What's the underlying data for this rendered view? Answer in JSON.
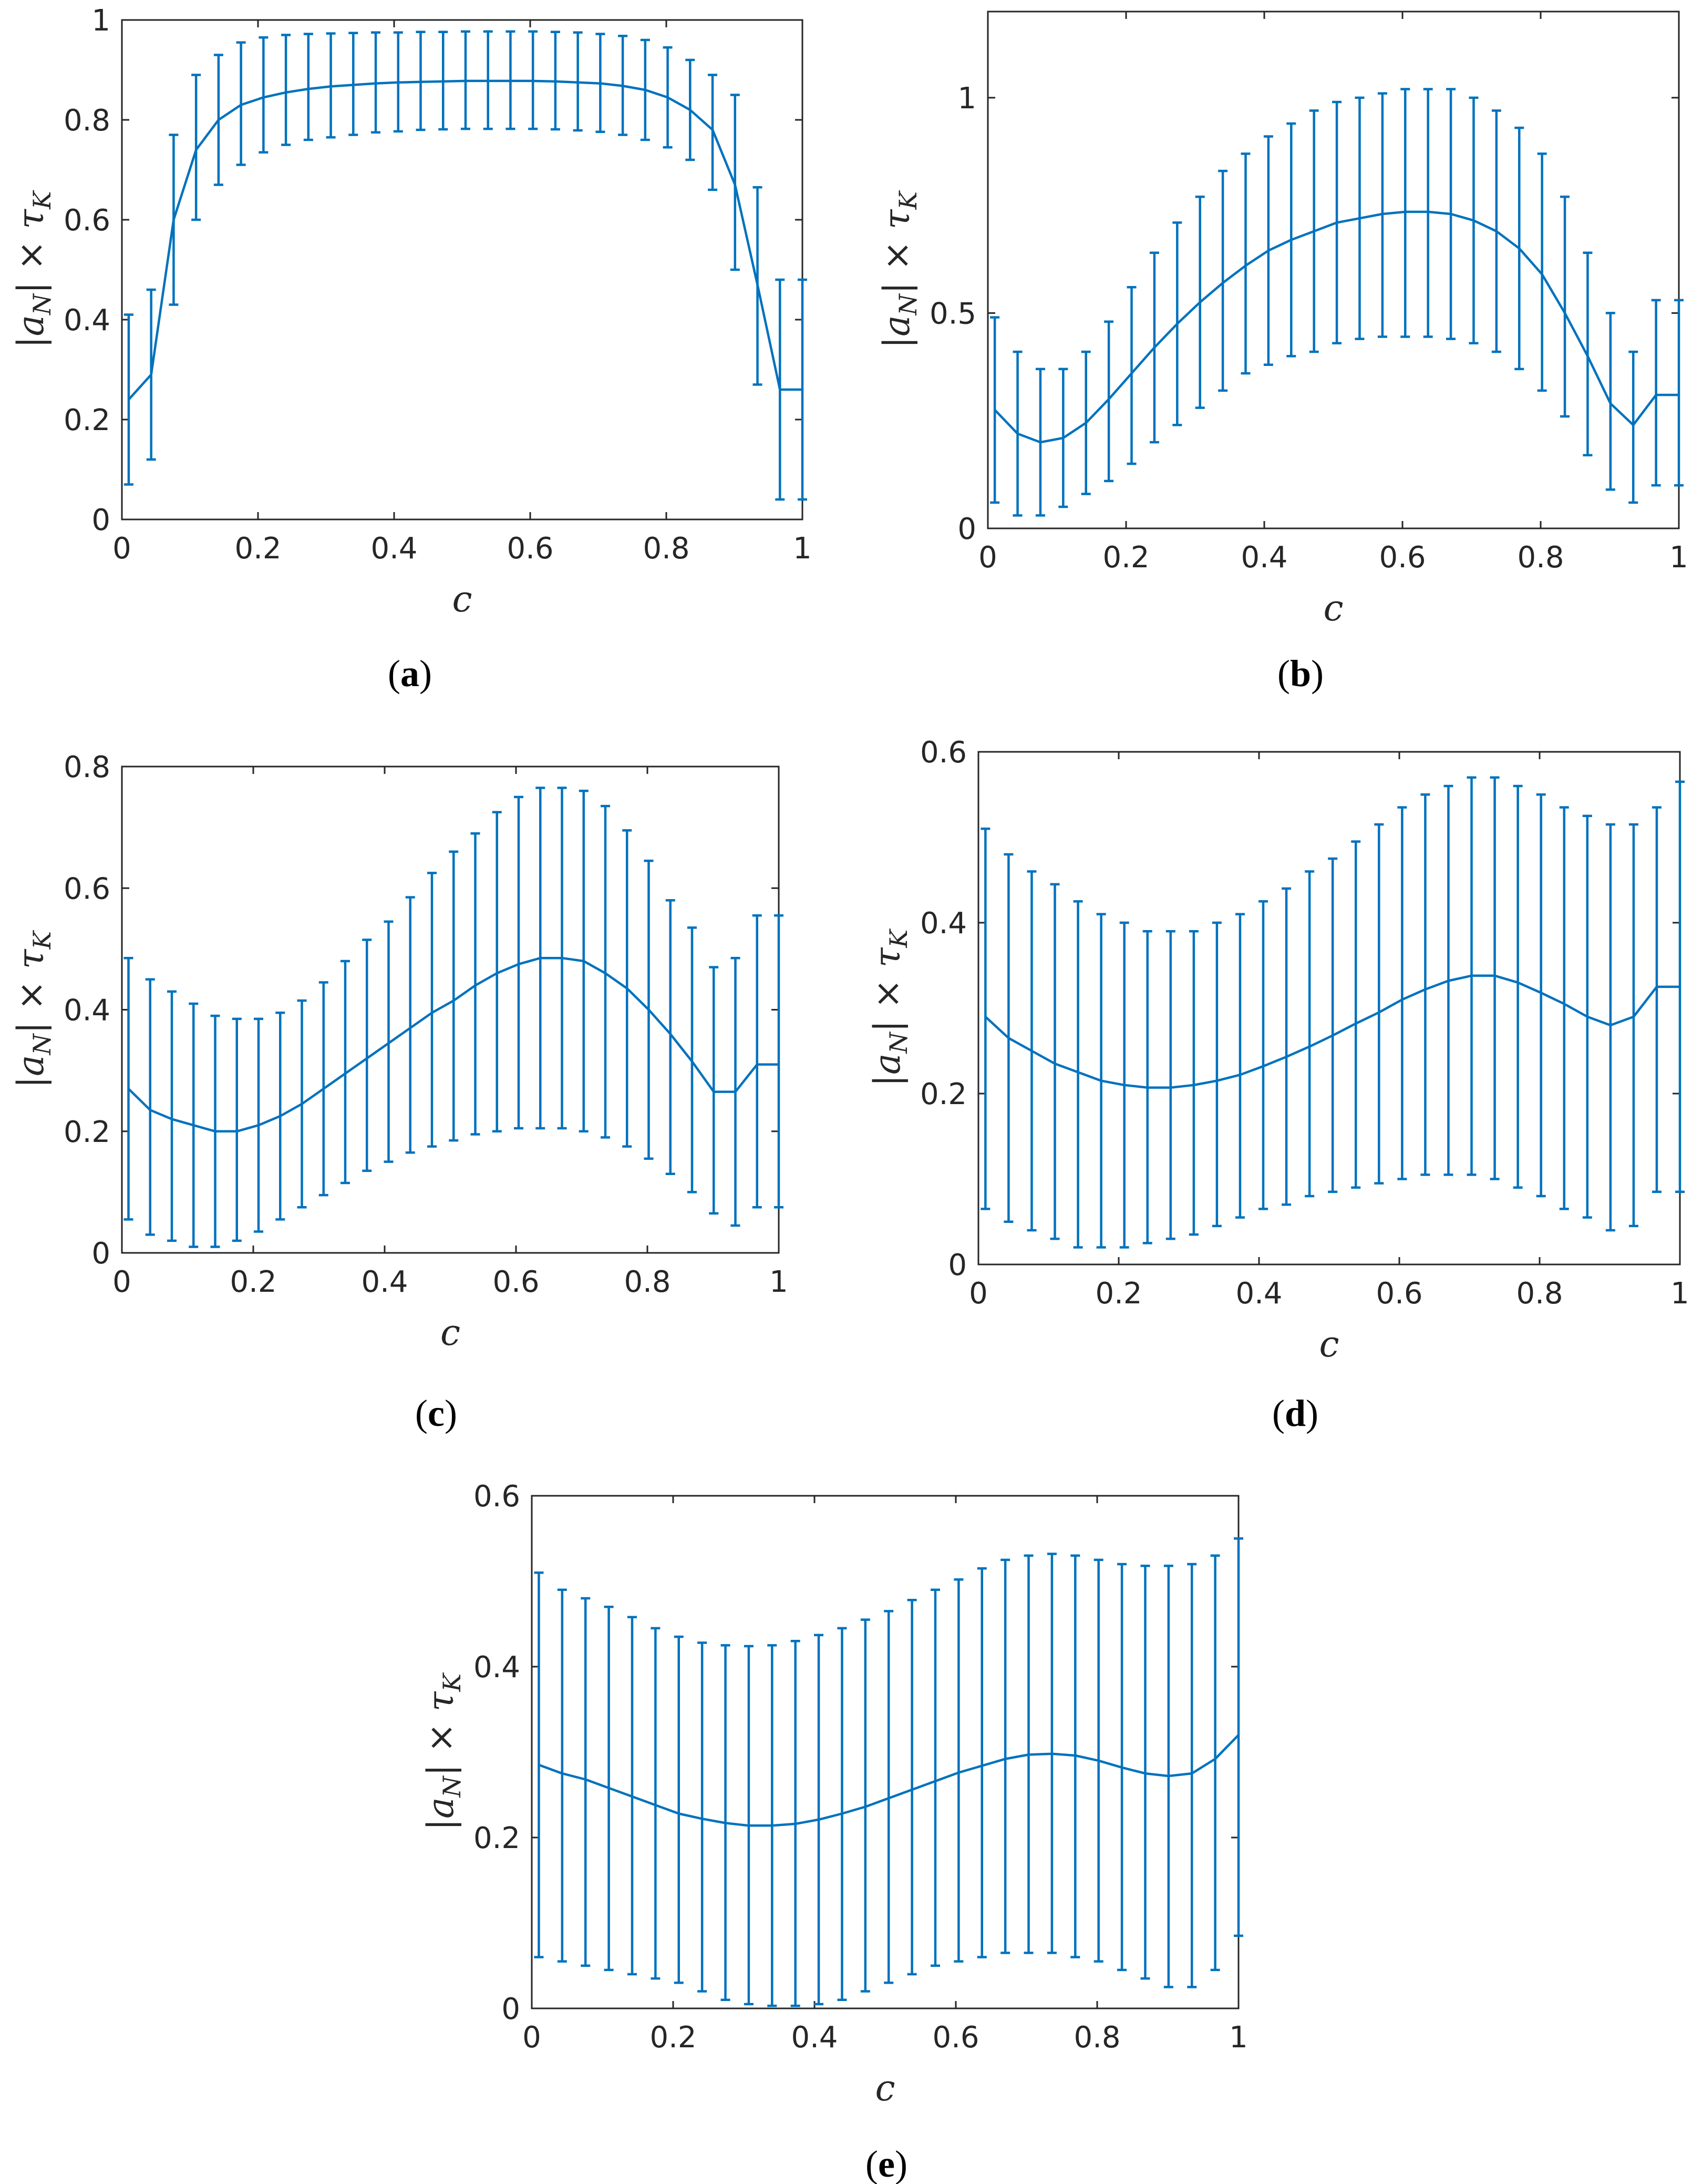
{
  "figure": {
    "colors": {
      "series": "#0072BD",
      "axis": "#262626",
      "background": "#ffffff"
    }
  },
  "chart_data": [
    {
      "type": "line",
      "panel_label": "a",
      "caption": "(a)",
      "xlabel": "c",
      "ylabel": {
        "pre": "|a",
        "sub": "N",
        "mid": "| × τ",
        "sub2": "K"
      },
      "xlim": [
        0,
        1
      ],
      "ylim": [
        0,
        1
      ],
      "xticks": [
        "0",
        "0.2",
        "0.4",
        "0.6",
        "0.8",
        "1"
      ],
      "yticks": [
        "0",
        "0.2",
        "0.4",
        "0.6",
        "0.8",
        "1"
      ],
      "xtick_values": [
        0,
        0.2,
        0.4,
        0.6,
        0.8,
        1
      ],
      "ytick_values": [
        0,
        0.2,
        0.4,
        0.6,
        0.8,
        1
      ],
      "error_bars": true,
      "grid": false,
      "x": [
        0.01,
        0.043,
        0.076,
        0.109,
        0.142,
        0.175,
        0.208,
        0.241,
        0.274,
        0.307,
        0.34,
        0.373,
        0.406,
        0.439,
        0.472,
        0.505,
        0.538,
        0.571,
        0.604,
        0.637,
        0.67,
        0.703,
        0.736,
        0.769,
        0.802,
        0.835,
        0.868,
        0.901,
        0.934,
        0.967,
        1.0
      ],
      "y": [
        0.24,
        0.29,
        0.6,
        0.74,
        0.8,
        0.83,
        0.845,
        0.855,
        0.862,
        0.867,
        0.87,
        0.873,
        0.875,
        0.876,
        0.877,
        0.878,
        0.878,
        0.878,
        0.878,
        0.877,
        0.875,
        0.873,
        0.868,
        0.86,
        0.845,
        0.82,
        0.78,
        0.67,
        0.47,
        0.26,
        0.26
      ],
      "lower": [
        0.07,
        0.12,
        0.43,
        0.6,
        0.67,
        0.71,
        0.735,
        0.75,
        0.76,
        0.765,
        0.77,
        0.775,
        0.777,
        0.78,
        0.781,
        0.782,
        0.782,
        0.782,
        0.782,
        0.781,
        0.779,
        0.776,
        0.77,
        0.76,
        0.745,
        0.72,
        0.66,
        0.5,
        0.27,
        0.04,
        0.04
      ],
      "upper": [
        0.41,
        0.46,
        0.77,
        0.89,
        0.93,
        0.955,
        0.965,
        0.97,
        0.972,
        0.973,
        0.974,
        0.975,
        0.975,
        0.976,
        0.976,
        0.977,
        0.977,
        0.977,
        0.977,
        0.976,
        0.975,
        0.972,
        0.968,
        0.96,
        0.945,
        0.92,
        0.89,
        0.85,
        0.665,
        0.48,
        0.48
      ]
    },
    {
      "type": "line",
      "panel_label": "b",
      "caption": "(b)",
      "xlabel": "c",
      "ylabel": {
        "pre": "|a",
        "sub": "N",
        "mid": "| × τ",
        "sub2": "K"
      },
      "xlim": [
        0,
        1
      ],
      "ylim": [
        0,
        1.2
      ],
      "xticks": [
        "0",
        "0.2",
        "0.4",
        "0.6",
        "0.8",
        "1"
      ],
      "yticks": [
        "0",
        "0.5",
        "1"
      ],
      "xtick_values": [
        0,
        0.2,
        0.4,
        0.6,
        0.8,
        1
      ],
      "ytick_values": [
        0,
        0.5,
        1
      ],
      "error_bars": true,
      "grid": false,
      "x": [
        0.01,
        0.043,
        0.076,
        0.109,
        0.142,
        0.175,
        0.208,
        0.241,
        0.274,
        0.307,
        0.34,
        0.373,
        0.406,
        0.439,
        0.472,
        0.505,
        0.538,
        0.571,
        0.604,
        0.637,
        0.67,
        0.703,
        0.736,
        0.769,
        0.802,
        0.835,
        0.868,
        0.901,
        0.934,
        0.967,
        1.0
      ],
      "y": [
        0.275,
        0.22,
        0.2,
        0.21,
        0.245,
        0.3,
        0.36,
        0.42,
        0.475,
        0.525,
        0.57,
        0.61,
        0.645,
        0.67,
        0.69,
        0.71,
        0.72,
        0.73,
        0.735,
        0.735,
        0.73,
        0.715,
        0.69,
        0.65,
        0.59,
        0.5,
        0.4,
        0.29,
        0.24,
        0.31,
        0.31
      ],
      "lower": [
        0.06,
        0.03,
        0.03,
        0.05,
        0.08,
        0.11,
        0.15,
        0.2,
        0.24,
        0.28,
        0.32,
        0.36,
        0.38,
        0.4,
        0.41,
        0.43,
        0.44,
        0.445,
        0.445,
        0.445,
        0.44,
        0.43,
        0.41,
        0.37,
        0.32,
        0.26,
        0.17,
        0.09,
        0.06,
        0.1,
        0.1
      ],
      "upper": [
        0.49,
        0.41,
        0.37,
        0.37,
        0.41,
        0.48,
        0.56,
        0.64,
        0.71,
        0.77,
        0.83,
        0.87,
        0.91,
        0.94,
        0.97,
        0.99,
        1.0,
        1.01,
        1.02,
        1.02,
        1.02,
        1.0,
        0.97,
        0.93,
        0.87,
        0.77,
        0.64,
        0.5,
        0.41,
        0.53,
        0.53
      ]
    },
    {
      "type": "line",
      "panel_label": "c",
      "caption": "(c)",
      "xlabel": "c",
      "ylabel": {
        "pre": "|a",
        "sub": "N",
        "mid": "| × τ",
        "sub2": "K"
      },
      "xlim": [
        0,
        1
      ],
      "ylim": [
        0,
        0.8
      ],
      "xticks": [
        "0",
        "0.2",
        "0.4",
        "0.6",
        "0.8",
        "1"
      ],
      "yticks": [
        "0",
        "0.2",
        "0.4",
        "0.6",
        "0.8"
      ],
      "xtick_values": [
        0,
        0.2,
        0.4,
        0.6,
        0.8,
        1
      ],
      "ytick_values": [
        0,
        0.2,
        0.4,
        0.6,
        0.8
      ],
      "error_bars": true,
      "grid": false,
      "x": [
        0.01,
        0.043,
        0.076,
        0.109,
        0.142,
        0.175,
        0.208,
        0.241,
        0.274,
        0.307,
        0.34,
        0.373,
        0.406,
        0.439,
        0.472,
        0.505,
        0.538,
        0.571,
        0.604,
        0.637,
        0.67,
        0.703,
        0.736,
        0.769,
        0.802,
        0.835,
        0.868,
        0.901,
        0.934,
        0.967,
        1.0
      ],
      "y": [
        0.27,
        0.235,
        0.22,
        0.21,
        0.2,
        0.2,
        0.21,
        0.225,
        0.245,
        0.27,
        0.295,
        0.32,
        0.345,
        0.37,
        0.395,
        0.415,
        0.44,
        0.46,
        0.475,
        0.485,
        0.485,
        0.48,
        0.46,
        0.435,
        0.4,
        0.36,
        0.315,
        0.265,
        0.265,
        0.31,
        0.31
      ],
      "lower": [
        0.055,
        0.03,
        0.02,
        0.01,
        0.01,
        0.02,
        0.035,
        0.055,
        0.075,
        0.095,
        0.115,
        0.135,
        0.15,
        0.165,
        0.175,
        0.185,
        0.195,
        0.2,
        0.205,
        0.205,
        0.205,
        0.2,
        0.19,
        0.175,
        0.155,
        0.13,
        0.1,
        0.065,
        0.045,
        0.075,
        0.075
      ],
      "upper": [
        0.485,
        0.45,
        0.43,
        0.41,
        0.39,
        0.385,
        0.385,
        0.395,
        0.415,
        0.445,
        0.48,
        0.515,
        0.545,
        0.585,
        0.625,
        0.66,
        0.69,
        0.725,
        0.75,
        0.765,
        0.765,
        0.76,
        0.735,
        0.695,
        0.645,
        0.58,
        0.535,
        0.47,
        0.485,
        0.555,
        0.555
      ]
    },
    {
      "type": "line",
      "panel_label": "d",
      "caption": "(d)",
      "xlabel": "c",
      "ylabel": {
        "pre": "|a",
        "sub": "N",
        "mid": "| × τ",
        "sub2": "K"
      },
      "xlim": [
        0,
        1
      ],
      "ylim": [
        0,
        0.6
      ],
      "xticks": [
        "0",
        "0.2",
        "0.4",
        "0.6",
        "0.8",
        "1"
      ],
      "yticks": [
        "0",
        "0.2",
        "0.4",
        "0.6"
      ],
      "xtick_values": [
        0,
        0.2,
        0.4,
        0.6,
        0.8,
        1
      ],
      "ytick_values": [
        0,
        0.2,
        0.4,
        0.6
      ],
      "error_bars": true,
      "grid": false,
      "x": [
        0.01,
        0.043,
        0.076,
        0.109,
        0.142,
        0.175,
        0.208,
        0.241,
        0.274,
        0.307,
        0.34,
        0.373,
        0.406,
        0.439,
        0.472,
        0.505,
        0.538,
        0.571,
        0.604,
        0.637,
        0.67,
        0.703,
        0.736,
        0.769,
        0.802,
        0.835,
        0.868,
        0.901,
        0.934,
        0.967,
        1.0
      ],
      "y": [
        0.29,
        0.265,
        0.25,
        0.235,
        0.225,
        0.215,
        0.21,
        0.207,
        0.207,
        0.21,
        0.215,
        0.222,
        0.232,
        0.243,
        0.255,
        0.268,
        0.282,
        0.295,
        0.31,
        0.322,
        0.332,
        0.338,
        0.338,
        0.33,
        0.318,
        0.305,
        0.29,
        0.28,
        0.29,
        0.325,
        0.325
      ],
      "lower": [
        0.065,
        0.05,
        0.04,
        0.03,
        0.02,
        0.02,
        0.02,
        0.025,
        0.03,
        0.035,
        0.045,
        0.055,
        0.065,
        0.07,
        0.08,
        0.085,
        0.09,
        0.095,
        0.1,
        0.105,
        0.105,
        0.105,
        0.1,
        0.09,
        0.08,
        0.065,
        0.055,
        0.04,
        0.045,
        0.085,
        0.085
      ],
      "upper": [
        0.51,
        0.48,
        0.46,
        0.445,
        0.425,
        0.41,
        0.4,
        0.39,
        0.39,
        0.39,
        0.4,
        0.41,
        0.425,
        0.44,
        0.46,
        0.475,
        0.495,
        0.515,
        0.535,
        0.55,
        0.56,
        0.57,
        0.57,
        0.56,
        0.55,
        0.535,
        0.525,
        0.515,
        0.515,
        0.535,
        0.565
      ]
    },
    {
      "type": "line",
      "panel_label": "e",
      "caption": "(e)",
      "xlabel": "c",
      "ylabel": {
        "pre": "|a",
        "sub": "N",
        "mid": "| × τ",
        "sub2": "K"
      },
      "xlim": [
        0,
        1
      ],
      "ylim": [
        0,
        0.6
      ],
      "xticks": [
        "0",
        "0.2",
        "0.4",
        "0.6",
        "0.8",
        "1"
      ],
      "yticks": [
        "0",
        "0.2",
        "0.4",
        "0.6"
      ],
      "xtick_values": [
        0,
        0.2,
        0.4,
        0.6,
        0.8,
        1
      ],
      "ytick_values": [
        0,
        0.2,
        0.4,
        0.6
      ],
      "error_bars": true,
      "grid": false,
      "x": [
        0.01,
        0.043,
        0.076,
        0.109,
        0.142,
        0.175,
        0.208,
        0.241,
        0.274,
        0.307,
        0.34,
        0.373,
        0.406,
        0.439,
        0.472,
        0.505,
        0.538,
        0.571,
        0.604,
        0.637,
        0.67,
        0.703,
        0.736,
        0.769,
        0.802,
        0.835,
        0.868,
        0.901,
        0.934,
        0.967,
        1.0
      ],
      "y": [
        0.285,
        0.275,
        0.268,
        0.258,
        0.248,
        0.238,
        0.228,
        0.222,
        0.217,
        0.214,
        0.214,
        0.216,
        0.221,
        0.228,
        0.236,
        0.246,
        0.256,
        0.266,
        0.276,
        0.284,
        0.292,
        0.297,
        0.298,
        0.296,
        0.29,
        0.282,
        0.275,
        0.272,
        0.275,
        0.292,
        0.32
      ],
      "lower": [
        0.06,
        0.055,
        0.05,
        0.045,
        0.04,
        0.035,
        0.03,
        0.02,
        0.01,
        0.005,
        0.003,
        0.003,
        0.005,
        0.01,
        0.02,
        0.03,
        0.04,
        0.05,
        0.055,
        0.06,
        0.065,
        0.065,
        0.065,
        0.06,
        0.055,
        0.045,
        0.035,
        0.025,
        0.025,
        0.045,
        0.085
      ],
      "upper": [
        0.51,
        0.49,
        0.48,
        0.47,
        0.458,
        0.445,
        0.435,
        0.428,
        0.425,
        0.424,
        0.425,
        0.43,
        0.437,
        0.445,
        0.455,
        0.465,
        0.478,
        0.49,
        0.502,
        0.515,
        0.525,
        0.53,
        0.532,
        0.53,
        0.525,
        0.52,
        0.518,
        0.518,
        0.52,
        0.53,
        0.55
      ]
    }
  ]
}
